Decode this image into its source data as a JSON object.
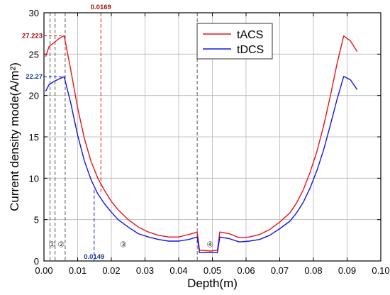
{
  "chart_data": {
    "type": "line",
    "xlabel": "Depth(m)",
    "ylabel": "Current density mode(A/m²)",
    "xlim": [
      0,
      0.1
    ],
    "ylim": [
      0,
      30
    ],
    "xticks": [
      "0.00",
      "0.01",
      "0.02",
      "0.03",
      "0.04",
      "0.05",
      "0.06",
      "0.07",
      "0.08",
      "0.09",
      "0.10"
    ],
    "yticks": [
      "0",
      "5",
      "10",
      "15",
      "20",
      "25",
      "30"
    ],
    "grid": true,
    "legend_position": "top-right",
    "series": [
      {
        "name": "tACS",
        "color": "#e8141b",
        "x": [
          0.0005,
          0.0015,
          0.003,
          0.0045,
          0.006,
          0.008,
          0.01,
          0.012,
          0.014,
          0.016,
          0.018,
          0.02,
          0.022,
          0.025,
          0.028,
          0.031,
          0.034,
          0.037,
          0.04,
          0.043,
          0.0455,
          0.0462,
          0.0495,
          0.0515,
          0.0522,
          0.055,
          0.058,
          0.061,
          0.064,
          0.067,
          0.07,
          0.073,
          0.075,
          0.077,
          0.079,
          0.081,
          0.083,
          0.085,
          0.087,
          0.089,
          0.091,
          0.093
        ],
        "y": [
          24.7,
          25.9,
          26.4,
          26.9,
          27.223,
          23.0,
          18.5,
          14.8,
          12.0,
          10.0,
          8.5,
          7.2,
          6.2,
          5.0,
          4.1,
          3.5,
          3.1,
          2.9,
          2.9,
          3.2,
          3.5,
          1.3,
          1.2,
          1.3,
          3.5,
          3.3,
          2.8,
          2.9,
          3.2,
          3.8,
          4.7,
          5.8,
          7.0,
          8.6,
          10.7,
          13.2,
          16.3,
          19.9,
          23.8,
          27.2,
          26.6,
          25.3
        ]
      },
      {
        "name": "tDCS",
        "color": "#1414e8",
        "x": [
          0.0005,
          0.0015,
          0.003,
          0.0045,
          0.006,
          0.008,
          0.01,
          0.012,
          0.014,
          0.016,
          0.018,
          0.02,
          0.022,
          0.025,
          0.028,
          0.031,
          0.034,
          0.037,
          0.04,
          0.043,
          0.0455,
          0.0462,
          0.0495,
          0.0515,
          0.0522,
          0.055,
          0.058,
          0.061,
          0.064,
          0.067,
          0.07,
          0.073,
          0.075,
          0.077,
          0.079,
          0.081,
          0.083,
          0.085,
          0.087,
          0.089,
          0.091,
          0.093
        ],
        "y": [
          20.5,
          21.3,
          21.7,
          22.0,
          22.27,
          19.0,
          15.2,
          12.1,
          9.8,
          8.1,
          6.9,
          5.9,
          5.0,
          4.1,
          3.3,
          2.9,
          2.6,
          2.4,
          2.4,
          2.6,
          2.9,
          1.0,
          1.0,
          1.0,
          2.9,
          2.7,
          2.3,
          2.4,
          2.6,
          3.1,
          3.9,
          4.8,
          5.8,
          7.1,
          8.8,
          10.9,
          13.4,
          16.4,
          19.5,
          22.3,
          21.9,
          20.7
        ]
      }
    ],
    "annotations": {
      "tacs_peak_value": "27.223",
      "tacs_peak_y": 27.223,
      "tdcs_peak_value": "22.27",
      "tdcs_peak_y": 22.27,
      "tacs_depth_label": "0.0169",
      "tacs_depth_x": 0.0169,
      "tdcs_depth_label": "0.0149",
      "tdcs_depth_x": 0.0149,
      "boundaries_x": [
        0.0018,
        0.0033,
        0.0063,
        0.0455
      ],
      "region_labels": [
        "①",
        "②",
        "③",
        "④"
      ],
      "region_x": [
        0.0024,
        0.0051,
        0.0235,
        0.0493
      ],
      "region_y": 2.0
    }
  }
}
